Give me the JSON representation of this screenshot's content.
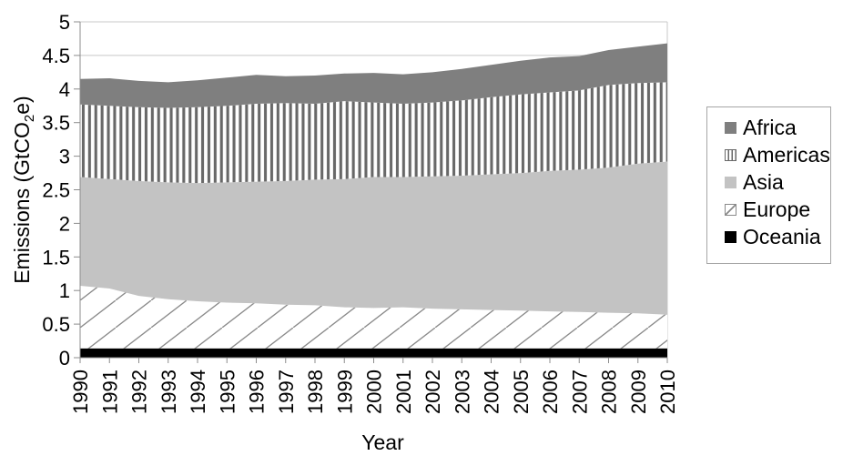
{
  "chart_data": {
    "type": "area",
    "stacked": true,
    "title": "",
    "xlabel": "Year",
    "ylabel": "Emissions (GtCO2e)",
    "ylabel_parts": {
      "pre": "Emissions (GtCO",
      "sub": "2",
      "post": "e)"
    },
    "x": [
      "1990",
      "1991",
      "1992",
      "1993",
      "1994",
      "1995",
      "1996",
      "1997",
      "1998",
      "1999",
      "2000",
      "2001",
      "2002",
      "2003",
      "2004",
      "2005",
      "2006",
      "2007",
      "2008",
      "2009",
      "2010"
    ],
    "ylim": [
      0,
      5
    ],
    "ytick_values": [
      0,
      0.5,
      1,
      1.5,
      2,
      2.5,
      3,
      3.5,
      4,
      4.5,
      5
    ],
    "ytick_labels": [
      "0",
      "0.5",
      "1",
      "1.5",
      "2",
      "2.5",
      "3",
      "3.5",
      "4",
      "4.5",
      "5"
    ],
    "grid": true,
    "legend_position": "right",
    "series": [
      {
        "name": "Oceania",
        "style": {
          "type": "solid",
          "color": "#000000"
        },
        "values": [
          0.14,
          0.14,
          0.14,
          0.14,
          0.14,
          0.14,
          0.14,
          0.14,
          0.14,
          0.14,
          0.14,
          0.14,
          0.14,
          0.14,
          0.14,
          0.14,
          0.14,
          0.14,
          0.14,
          0.14,
          0.14
        ]
      },
      {
        "name": "Europe",
        "style": {
          "type": "diagonal-hatch",
          "line_color": "#8a8a8a",
          "bg": "#ffffff"
        },
        "values": [
          0.93,
          0.89,
          0.78,
          0.73,
          0.7,
          0.68,
          0.67,
          0.65,
          0.64,
          0.61,
          0.6,
          0.61,
          0.59,
          0.58,
          0.57,
          0.56,
          0.55,
          0.54,
          0.53,
          0.52,
          0.5
        ]
      },
      {
        "name": "Asia",
        "style": {
          "type": "solid",
          "color": "#c3c3c3"
        },
        "values": [
          1.62,
          1.63,
          1.71,
          1.74,
          1.76,
          1.79,
          1.81,
          1.84,
          1.87,
          1.91,
          1.95,
          1.94,
          1.97,
          1.99,
          2.02,
          2.05,
          2.09,
          2.12,
          2.16,
          2.23,
          2.28
        ]
      },
      {
        "name": "Americas",
        "style": {
          "type": "vertical-lines",
          "line_color": "#686868",
          "bg": "#ffffff"
        },
        "values": [
          1.08,
          1.09,
          1.1,
          1.11,
          1.13,
          1.14,
          1.16,
          1.16,
          1.13,
          1.16,
          1.11,
          1.09,
          1.1,
          1.12,
          1.15,
          1.17,
          1.17,
          1.18,
          1.23,
          1.2,
          1.18
        ]
      },
      {
        "name": "Africa",
        "style": {
          "type": "solid",
          "color": "#7f7f7f"
        },
        "values": [
          0.38,
          0.41,
          0.39,
          0.38,
          0.4,
          0.42,
          0.43,
          0.4,
          0.42,
          0.41,
          0.44,
          0.44,
          0.45,
          0.47,
          0.48,
          0.5,
          0.52,
          0.51,
          0.52,
          0.54,
          0.58
        ]
      }
    ],
    "legend_order": [
      "Africa",
      "Americas",
      "Asia",
      "Europe",
      "Oceania"
    ]
  },
  "colors": {
    "background": "#ffffff",
    "axis": "#8c8c8c",
    "grid": "#c8c8c8",
    "plot_border": "#c8c8c8",
    "legend_border": "#a6a6a6",
    "text": "#000000"
  }
}
